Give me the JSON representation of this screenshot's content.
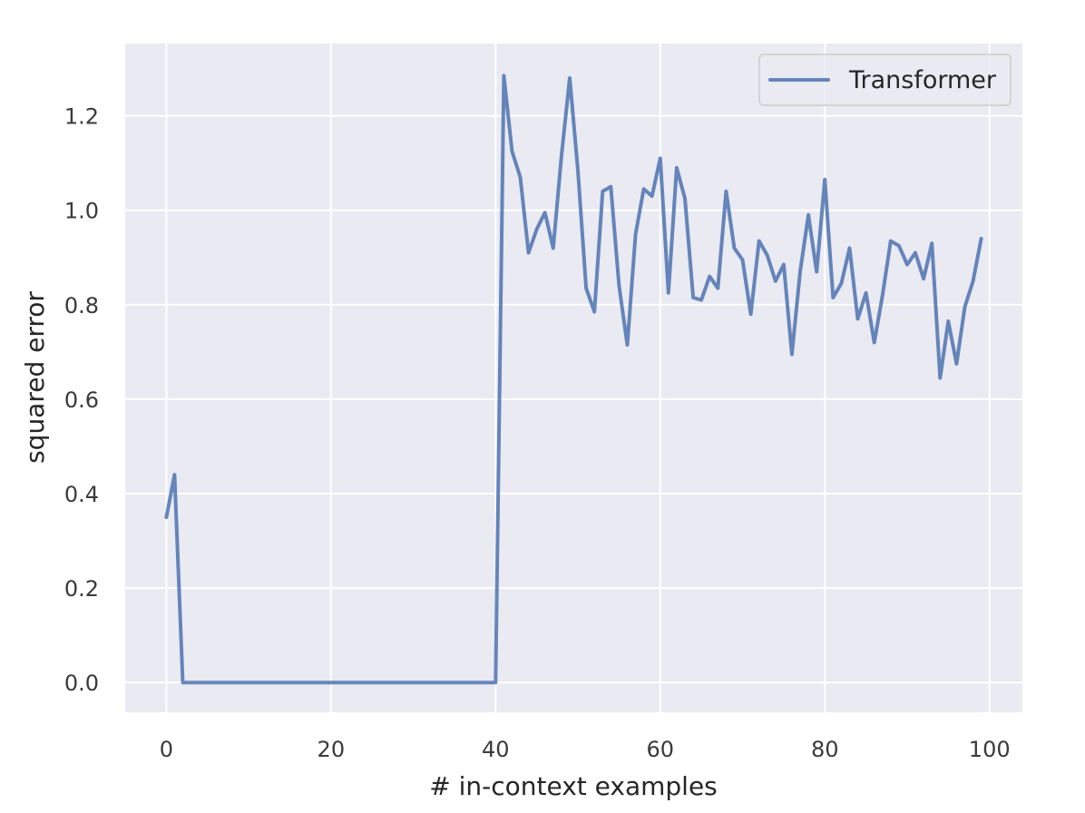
{
  "chart_data": {
    "type": "line",
    "title": "",
    "xlabel": "# in-context examples",
    "ylabel": "squared error",
    "xlim": [
      -5,
      104
    ],
    "ylim": [
      -0.063,
      1.353
    ],
    "xticks": [
      0,
      20,
      40,
      60,
      80,
      100
    ],
    "yticks": [
      0.0,
      0.2,
      0.4,
      0.6,
      0.8,
      1.0,
      1.2
    ],
    "xtick_labels": [
      "0",
      "20",
      "40",
      "60",
      "80",
      "100"
    ],
    "ytick_labels": [
      "0.0",
      "0.2",
      "0.4",
      "0.6",
      "0.8",
      "1.0",
      "1.2"
    ],
    "grid": true,
    "legend_position": "top-right",
    "colors": {
      "background": "#eaeaf2",
      "grid": "#ffffff",
      "series": "#4c72b0"
    },
    "series": [
      {
        "name": "Transformer",
        "x": [
          0,
          1,
          2,
          3,
          4,
          5,
          6,
          7,
          8,
          9,
          10,
          11,
          12,
          13,
          14,
          15,
          16,
          17,
          18,
          19,
          20,
          21,
          22,
          23,
          24,
          25,
          26,
          27,
          28,
          29,
          30,
          31,
          32,
          33,
          34,
          35,
          36,
          37,
          38,
          39,
          40,
          41,
          42,
          43,
          44,
          45,
          46,
          47,
          48,
          49,
          50,
          51,
          52,
          53,
          54,
          55,
          56,
          57,
          58,
          59,
          60,
          61,
          62,
          63,
          64,
          65,
          66,
          67,
          68,
          69,
          70,
          71,
          72,
          73,
          74,
          75,
          76,
          77,
          78,
          79,
          80,
          81,
          82,
          83,
          84,
          85,
          86,
          87,
          88,
          89,
          90,
          91,
          92,
          93,
          94,
          95,
          96,
          97,
          98,
          99
        ],
        "y": [
          0.35,
          0.44,
          0.0,
          0.0,
          0.0,
          0.0,
          0.0,
          0.0,
          0.0,
          0.0,
          0.0,
          0.0,
          0.0,
          0.0,
          0.0,
          0.0,
          0.0,
          0.0,
          0.0,
          0.0,
          0.0,
          0.0,
          0.0,
          0.0,
          0.0,
          0.0,
          0.0,
          0.0,
          0.0,
          0.0,
          0.0,
          0.0,
          0.0,
          0.0,
          0.0,
          0.0,
          0.0,
          0.0,
          0.0,
          0.0,
          0.0,
          1.285,
          1.125,
          1.07,
          0.91,
          0.96,
          0.995,
          0.92,
          1.115,
          1.28,
          1.085,
          0.835,
          0.785,
          1.04,
          1.05,
          0.84,
          0.715,
          0.95,
          1.045,
          1.03,
          1.11,
          0.825,
          1.09,
          1.025,
          0.815,
          0.81,
          0.86,
          0.835,
          1.04,
          0.92,
          0.895,
          0.78,
          0.935,
          0.905,
          0.85,
          0.885,
          0.695,
          0.87,
          0.99,
          0.87,
          1.065,
          0.815,
          0.845,
          0.92,
          0.77,
          0.825,
          0.72,
          0.82,
          0.935,
          0.925,
          0.885,
          0.91,
          0.855,
          0.93,
          0.645,
          0.765,
          0.675,
          0.795,
          0.85,
          0.94
        ]
      }
    ]
  }
}
